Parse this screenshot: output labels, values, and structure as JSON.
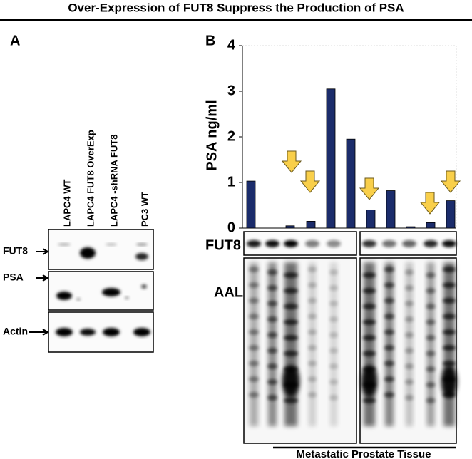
{
  "title": "Over-Expression of FUT8 Suppress the Production of PSA",
  "panel_a": {
    "label": "A",
    "lanes": [
      "LAPC4 WT",
      "LAPC4 FUT8 OverExp",
      "LAPC4 -shRNA FUT8",
      "PC3 WT"
    ],
    "blots": [
      "FUT8",
      "PSA",
      "Actin"
    ]
  },
  "panel_b": {
    "label": "B",
    "blots": [
      "FUT8",
      "AAL"
    ],
    "footer": "Metastatic Prostate Tissue"
  },
  "chart_data": {
    "type": "bar",
    "y_label": "PSA ng/ml",
    "categories": [
      null,
      null,
      null,
      null,
      null,
      null,
      null,
      null,
      null,
      null
    ],
    "values": [
      1.03,
      0.05,
      0.15,
      3.05,
      1.95,
      0.4,
      0.82,
      0.03,
      0.12,
      0.6
    ],
    "color": "#1b2c6b",
    "ylim": [
      0,
      4
    ],
    "yticks": [
      0,
      1,
      2,
      3,
      4
    ],
    "grid": false
  }
}
